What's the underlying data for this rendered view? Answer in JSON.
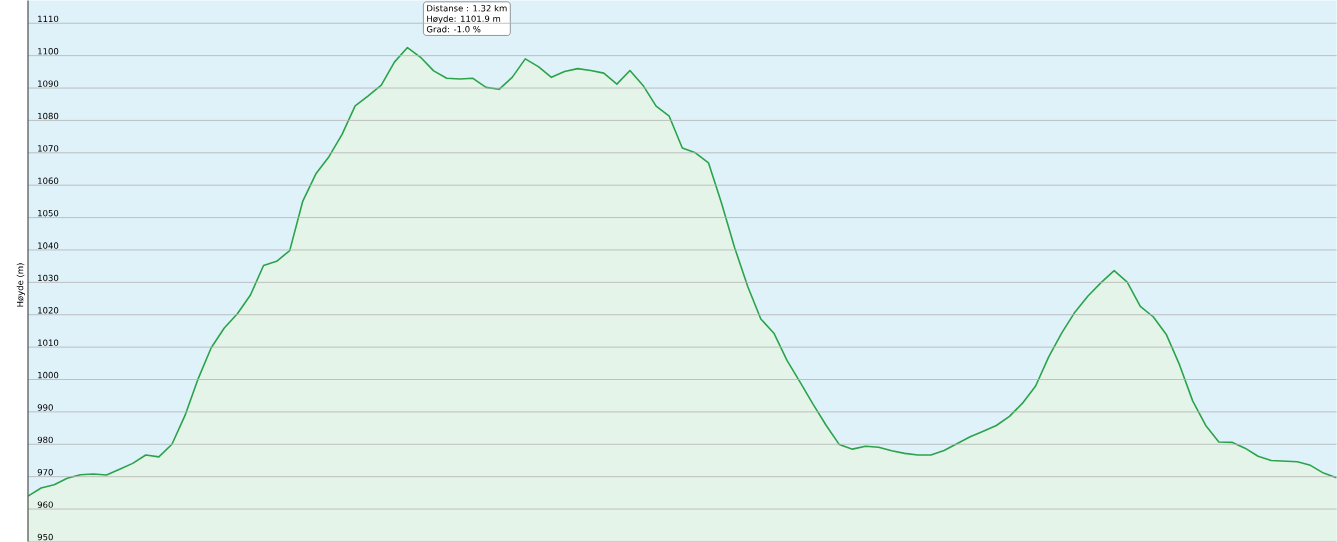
{
  "chart_data": {
    "type": "area",
    "ylabel": "Høyde (m)",
    "categories": [
      null,
      null,
      null,
      null,
      null,
      null,
      null,
      null,
      null,
      null,
      null,
      null,
      null,
      null,
      null,
      null,
      null,
      null,
      null,
      null,
      null,
      null,
      null,
      null,
      null,
      null,
      null,
      null,
      null,
      null,
      null,
      null,
      null,
      null,
      null,
      null,
      null,
      null,
      null,
      null,
      null,
      null,
      null,
      null,
      null,
      null,
      null,
      null,
      null,
      null,
      null,
      null,
      null,
      null,
      null,
      null,
      null,
      null,
      null,
      null,
      null,
      null,
      null,
      null,
      null,
      null,
      null,
      null,
      null,
      null,
      null,
      null,
      null,
      null,
      null,
      null,
      null,
      null,
      null,
      null,
      null,
      null,
      null,
      null,
      null,
      null,
      null,
      null,
      null,
      null,
      null,
      null,
      null,
      null,
      null,
      null,
      null,
      null,
      null,
      null,
      null
    ],
    "series": [
      {
        "color": "#2aa44a",
        "values": [
          964,
          966.5,
          967.5,
          969.5,
          970.6,
          970.8,
          970.5,
          972.3,
          974.1,
          976.7,
          976.1,
          980,
          988.9,
          1000.2,
          1009.8,
          1015.9,
          1020.3,
          1026.1,
          1035.2,
          1036.5,
          1039.8,
          1055.1,
          1063.5,
          1068.8,
          1075.7,
          1084.5,
          1087.6,
          1090.9,
          1098,
          1102.5,
          1099.5,
          1095.3,
          1093,
          1092.8,
          1093,
          1090.2,
          1089.6,
          1093.3,
          1099,
          1096.6,
          1093.3,
          1095.1,
          1096,
          1095.4,
          1094.6,
          1091.2,
          1095.4,
          1090.8,
          1084.4,
          1081.3,
          1071.5,
          1070,
          1066.9,
          1054.4,
          1040.7,
          1028.7,
          1018.7,
          1014.3,
          1005.9,
          999.2,
          992.3,
          985.8,
          979.9,
          978.5,
          979.4,
          979.1,
          978,
          977.2,
          976.7,
          976.7,
          978.1,
          980.2,
          982.3,
          984,
          985.8,
          988.6,
          992.7,
          998,
          1007,
          1014.4,
          1020.8,
          1025.8,
          1029.9,
          1033.6,
          1030.1,
          1022.6,
          1019.3,
          1013.8,
          1004.5,
          993.4,
          985.8,
          980.7,
          980.6,
          978.8,
          976.3,
          975,
          974.8,
          974.6,
          973.5,
          971.1,
          969.7
        ]
      }
    ],
    "ylim": [
      950,
      1117
    ],
    "yticks": [
      950,
      960,
      970,
      980,
      990,
      1000,
      1010,
      1020,
      1030,
      1040,
      1050,
      1060,
      1070,
      1080,
      1090,
      1100,
      1110
    ],
    "grid": "y",
    "tick_labels": "y",
    "annotations": [
      "Distanse : 1.32 km",
      "Høyde: 1101.9 m",
      "Grad: -1.0 %"
    ]
  }
}
